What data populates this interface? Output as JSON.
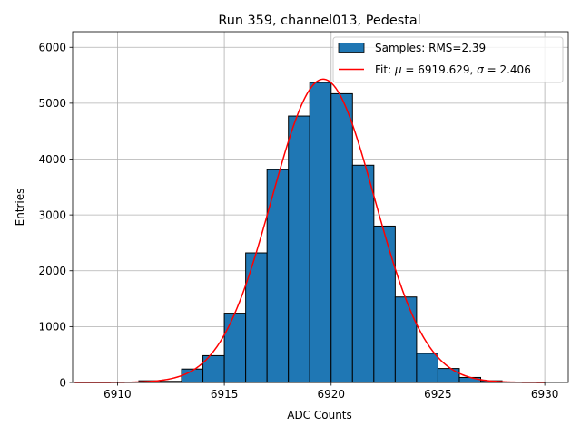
{
  "chart_data": {
    "type": "bar",
    "title": "Run 359, channel013, Pedestal",
    "xlabel": "ADC Counts",
    "ylabel": "Entries",
    "xlim": [
      6907.9,
      6931.1
    ],
    "ylim": [
      0,
      6280
    ],
    "xticks": [
      6910,
      6915,
      6920,
      6925,
      6930
    ],
    "yticks": [
      0,
      1000,
      2000,
      3000,
      4000,
      5000,
      6000
    ],
    "grid": true,
    "legend_position": "top-right",
    "colors": {
      "bars": "#1f77b4",
      "bar_edge": "#000000",
      "fit": "#ff0000",
      "grid": "#b0b0b0"
    },
    "histogram": {
      "name": "Samples: RMS=2.39",
      "bins": [
        {
          "x0": 6911,
          "x1": 6912,
          "count": 30
        },
        {
          "x0": 6912,
          "x1": 6913,
          "count": 20
        },
        {
          "x0": 6913,
          "x1": 6914,
          "count": 240
        },
        {
          "x0": 6914,
          "x1": 6915,
          "count": 480
        },
        {
          "x0": 6915,
          "x1": 6916,
          "count": 1240
        },
        {
          "x0": 6916,
          "x1": 6917,
          "count": 2320
        },
        {
          "x0": 6917,
          "x1": 6918,
          "count": 3810
        },
        {
          "x0": 6918,
          "x1": 6919,
          "count": 4770
        },
        {
          "x0": 6919,
          "x1": 6920,
          "count": 5370
        },
        {
          "x0": 6920,
          "x1": 6921,
          "count": 5170
        },
        {
          "x0": 6921,
          "x1": 6922,
          "count": 3890
        },
        {
          "x0": 6922,
          "x1": 6923,
          "count": 2800
        },
        {
          "x0": 6923,
          "x1": 6924,
          "count": 1530
        },
        {
          "x0": 6924,
          "x1": 6925,
          "count": 520
        },
        {
          "x0": 6925,
          "x1": 6926,
          "count": 250
        },
        {
          "x0": 6926,
          "x1": 6927,
          "count": 90
        },
        {
          "x0": 6927,
          "x1": 6928,
          "count": 30
        }
      ]
    },
    "fit": {
      "name_prefix": "Fit: ",
      "mu_symbol": "μ",
      "sigma_symbol": "σ",
      "mu_value": "6919.629",
      "sigma_value": "2.406",
      "mu": 6919.629,
      "sigma": 2.406,
      "amplitude": 5430,
      "x_range": [
        6908,
        6930
      ]
    }
  }
}
